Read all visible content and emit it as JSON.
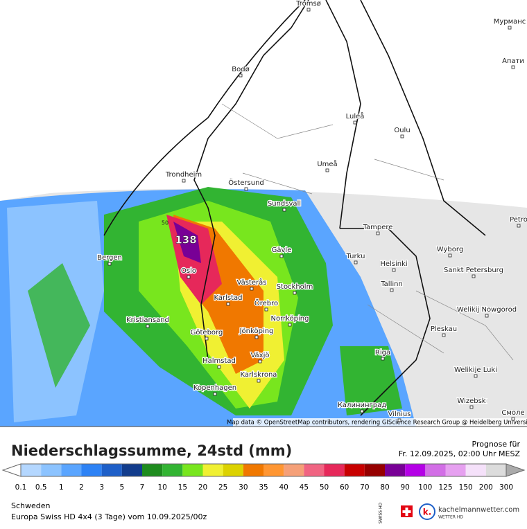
{
  "map": {
    "cities": [
      "Tromsø",
      "Мурманс",
      "Bodø",
      "Апати",
      "Luleå",
      "Oulu",
      "Trondheim",
      "Östersund",
      "Umeå",
      "Sundsvall",
      "Tampere",
      "Petro",
      "Bergen",
      "Gävle",
      "Oslo",
      "Turku",
      "Wyborg",
      "Helsinki",
      "Sankt Petersburg",
      "Västerås",
      "Stockholm",
      "Tallinn",
      "Karlstad",
      "Örebro",
      "Welikij Nowgorod",
      "Norrköping",
      "Kristiansand",
      "Pleskau",
      "Göteborg",
      "Jönköping",
      "Riga",
      "Halmstad",
      "Växjö",
      "Welikije Luki",
      "Karlskrona",
      "Kopenhagen",
      "Калининград",
      "Vilnius",
      "Wizebsk",
      "Смоле"
    ],
    "max_label": "138",
    "contour_label": "50",
    "attribution": "Map data © OpenStreetMap contributors, rendering GIScience Research Group @ Heidelberg University"
  },
  "header": {
    "title": "Niederschlagssumme, 24std (mm)",
    "prognose": "Prognose für",
    "valid": "Fr. 12.09.2025, 02:00 Uhr MESZ"
  },
  "legend": {
    "values": [
      0.1,
      0.5,
      1,
      2,
      3,
      5,
      7,
      10,
      15,
      20,
      25,
      30,
      35,
      40,
      45,
      50,
      60,
      70,
      80,
      90,
      100,
      125,
      150,
      200,
      300
    ],
    "colors": [
      "#b4d7ff",
      "#8cc3ff",
      "#5aa5ff",
      "#2d82f5",
      "#1e5fc8",
      "#123c8c",
      "#1e8c1e",
      "#32b432",
      "#78e61e",
      "#f0f032",
      "#dcd200",
      "#f07800",
      "#ff9632",
      "#f5a078",
      "#f06482",
      "#e6285a",
      "#c80000",
      "#960000",
      "#780096",
      "#b400e6",
      "#d26ee6",
      "#e6a0f0",
      "#f5e1fa",
      "#dcdcdc"
    ]
  },
  "footer": {
    "region": "Schweden",
    "model": "Europa Swiss HD 4x4 (3 Tage) vom 10.09.2025/00z",
    "badge": "SWISS HD",
    "site": "kachelmannwetter.com",
    "site_sub": "WETTER HD"
  }
}
